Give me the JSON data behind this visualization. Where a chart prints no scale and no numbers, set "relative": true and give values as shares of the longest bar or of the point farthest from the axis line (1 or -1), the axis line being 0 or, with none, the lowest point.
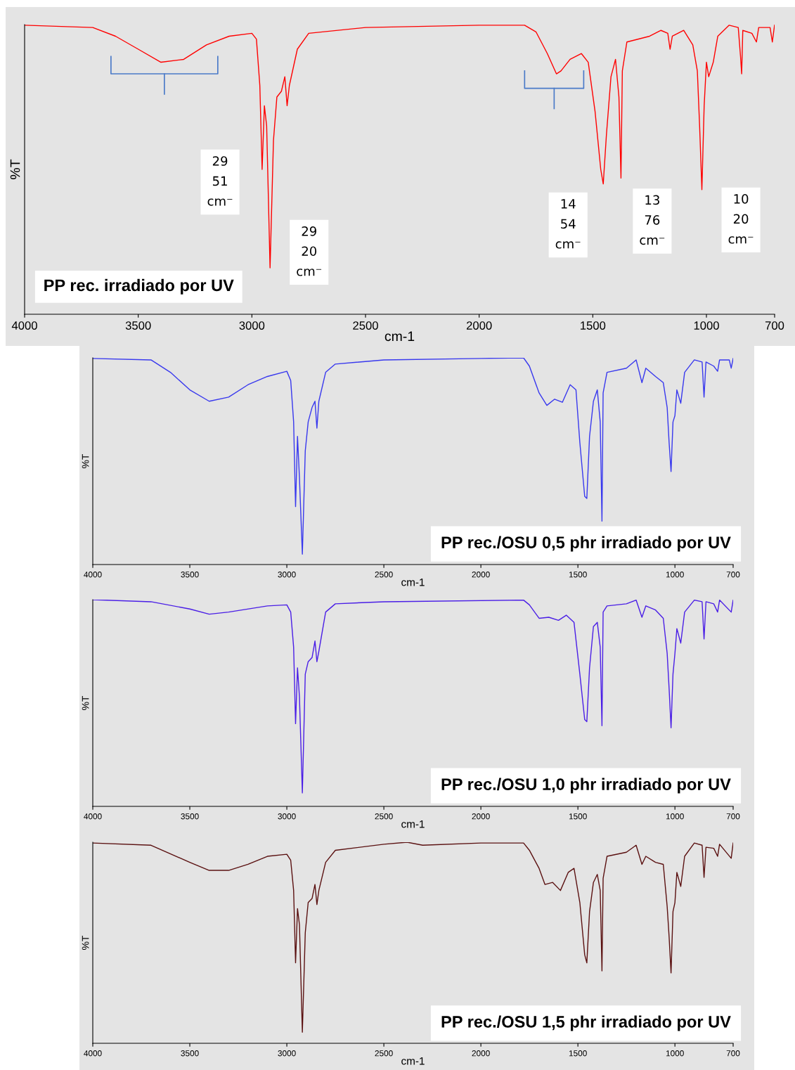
{
  "chart_data": [
    {
      "type": "line",
      "relative": true,
      "xlabel": "cm-1",
      "ylabel": "%T",
      "xlim": [
        4000,
        700
      ],
      "xticks": [
        4000,
        3500,
        3000,
        2500,
        2000,
        1500,
        1000,
        700
      ],
      "color": "#ff0000",
      "x": [
        4000,
        3700,
        3600,
        3500,
        3400,
        3300,
        3200,
        3100,
        3000,
        2980,
        2965,
        2955,
        2945,
        2935,
        2920,
        2905,
        2890,
        2870,
        2855,
        2845,
        2835,
        2800,
        2750,
        2500,
        2000,
        1800,
        1750,
        1700,
        1660,
        1640,
        1600,
        1550,
        1520,
        1490,
        1465,
        1454,
        1440,
        1420,
        1400,
        1385,
        1376,
        1370,
        1350,
        1250,
        1200,
        1170,
        1160,
        1150,
        1100,
        1060,
        1040,
        1030,
        1020,
        1010,
        1000,
        990,
        970,
        950,
        900,
        860,
        850,
        845,
        840,
        800,
        780,
        770,
        720,
        710,
        700
      ],
      "values": [
        0.998,
        0.99,
        0.96,
        0.915,
        0.87,
        0.88,
        0.93,
        0.96,
        0.97,
        0.95,
        0.79,
        0.5,
        0.72,
        0.65,
        0.16,
        0.6,
        0.75,
        0.77,
        0.82,
        0.72,
        0.79,
        0.915,
        0.97,
        0.99,
        0.998,
        0.998,
        0.975,
        0.9,
        0.83,
        0.84,
        0.88,
        0.9,
        0.87,
        0.7,
        0.5,
        0.45,
        0.62,
        0.82,
        0.88,
        0.75,
        0.47,
        0.84,
        0.94,
        0.96,
        0.98,
        0.97,
        0.915,
        0.96,
        0.98,
        0.93,
        0.84,
        0.65,
        0.43,
        0.72,
        0.87,
        0.82,
        0.87,
        0.96,
        0.998,
        0.99,
        0.89,
        0.83,
        0.98,
        0.97,
        0.94,
        0.99,
        0.99,
        0.94,
        1.0
      ],
      "annotations": [
        {
          "text": "29\n51\ncm⁻",
          "x": 2951,
          "y": 0.5
        },
        {
          "text": "29\n20\ncm⁻",
          "x": 2920,
          "y": 0.16
        },
        {
          "text": "14\n54\ncm⁻",
          "x": 1454,
          "y": 0.45
        },
        {
          "text": "13\n76\ncm⁻",
          "x": 1376,
          "y": 0.47
        },
        {
          "text": "10\n20\ncm⁻",
          "x": 1020,
          "y": 0.43
        },
        "PP rec. irradiado por UV"
      ]
    },
    {
      "type": "line",
      "relative": true,
      "xlabel": "cm-1",
      "ylabel": "%T",
      "xlim": [
        4000,
        700
      ],
      "xticks": [
        4000,
        3500,
        3000,
        2500,
        2000,
        1500,
        1000,
        700
      ],
      "color": "#3838ee",
      "x": [
        4000,
        3700,
        3600,
        3500,
        3400,
        3300,
        3200,
        3100,
        3000,
        2980,
        2965,
        2955,
        2945,
        2935,
        2920,
        2905,
        2890,
        2870,
        2855,
        2845,
        2835,
        2800,
        2750,
        2500,
        2000,
        1780,
        1750,
        1700,
        1660,
        1620,
        1580,
        1540,
        1510,
        1490,
        1465,
        1454,
        1440,
        1420,
        1400,
        1385,
        1376,
        1370,
        1350,
        1250,
        1200,
        1170,
        1150,
        1100,
        1060,
        1040,
        1030,
        1020,
        1010,
        1000,
        990,
        970,
        950,
        900,
        860,
        850,
        840,
        800,
        780,
        770,
        720,
        710,
        700
      ],
      "values": [
        0.997,
        0.99,
        0.93,
        0.845,
        0.79,
        0.81,
        0.87,
        0.91,
        0.935,
        0.89,
        0.69,
        0.28,
        0.62,
        0.42,
        0.05,
        0.55,
        0.69,
        0.76,
        0.79,
        0.66,
        0.79,
        0.93,
        0.97,
        0.99,
        0.997,
        1.0,
        0.96,
        0.83,
        0.77,
        0.8,
        0.785,
        0.87,
        0.845,
        0.59,
        0.33,
        0.32,
        0.62,
        0.79,
        0.845,
        0.69,
        0.21,
        0.83,
        0.93,
        0.95,
        0.99,
        0.88,
        0.95,
        0.91,
        0.88,
        0.76,
        0.59,
        0.45,
        0.69,
        0.72,
        0.845,
        0.78,
        0.93,
        0.99,
        0.98,
        0.81,
        0.98,
        0.96,
        0.935,
        0.99,
        0.99,
        0.95,
        0.997
      ],
      "annotations": [
        "PP rec./OSU 0,5 phr irradiado por UV"
      ]
    },
    {
      "type": "line",
      "relative": true,
      "xlabel": "cm-1",
      "ylabel": "%T",
      "xlim": [
        4000,
        700
      ],
      "xticks": [
        4000,
        3500,
        3000,
        2500,
        2000,
        1500,
        1000,
        700
      ],
      "color": "#4a1ee6",
      "x": [
        4000,
        3700,
        3500,
        3400,
        3300,
        3100,
        3000,
        2980,
        2965,
        2955,
        2945,
        2935,
        2920,
        2905,
        2890,
        2870,
        2855,
        2845,
        2835,
        2800,
        2750,
        2500,
        1780,
        1750,
        1700,
        1650,
        1600,
        1560,
        1520,
        1490,
        1465,
        1454,
        1440,
        1420,
        1400,
        1385,
        1376,
        1370,
        1350,
        1250,
        1200,
        1170,
        1150,
        1100,
        1060,
        1040,
        1030,
        1020,
        1010,
        1000,
        990,
        970,
        950,
        900,
        860,
        850,
        840,
        800,
        780,
        770,
        710,
        700
      ],
      "values": [
        1.0,
        0.99,
        0.955,
        0.93,
        0.94,
        0.97,
        0.975,
        0.94,
        0.77,
        0.4,
        0.67,
        0.53,
        0.065,
        0.64,
        0.7,
        0.72,
        0.8,
        0.7,
        0.75,
        0.94,
        0.98,
        0.99,
        0.998,
        0.975,
        0.91,
        0.915,
        0.9,
        0.925,
        0.89,
        0.64,
        0.42,
        0.41,
        0.67,
        0.87,
        0.89,
        0.77,
        0.39,
        0.94,
        0.97,
        0.98,
        0.998,
        0.915,
        0.97,
        0.95,
        0.91,
        0.74,
        0.57,
        0.38,
        0.64,
        0.74,
        0.86,
        0.79,
        0.94,
        0.998,
        0.99,
        0.81,
        0.99,
        0.98,
        0.94,
        0.998,
        0.94,
        0.998
      ],
      "annotations": [
        "PP rec./OSU 1,0 phr irradiado por UV"
      ]
    },
    {
      "type": "line",
      "relative": true,
      "xlabel": "cm-1",
      "ylabel": "%T",
      "xlim": [
        4000,
        700
      ],
      "xticks": [
        4000,
        3500,
        3000,
        2500,
        2000,
        1500,
        1000,
        700
      ],
      "color": "#5a1010",
      "x": [
        4000,
        3700,
        3500,
        3400,
        3300,
        3200,
        3100,
        3000,
        2980,
        2965,
        2955,
        2945,
        2935,
        2920,
        2905,
        2890,
        2870,
        2855,
        2845,
        2835,
        2800,
        2750,
        2500,
        2380,
        2300,
        2000,
        1780,
        1750,
        1700,
        1670,
        1630,
        1590,
        1550,
        1520,
        1490,
        1465,
        1454,
        1440,
        1420,
        1400,
        1385,
        1376,
        1370,
        1350,
        1250,
        1200,
        1170,
        1150,
        1100,
        1060,
        1040,
        1030,
        1020,
        1010,
        1000,
        990,
        970,
        950,
        900,
        860,
        850,
        840,
        800,
        780,
        770,
        710,
        700
      ],
      "values": [
        0.996,
        0.985,
        0.9,
        0.86,
        0.86,
        0.89,
        0.93,
        0.94,
        0.91,
        0.76,
        0.4,
        0.67,
        0.59,
        0.055,
        0.55,
        0.7,
        0.72,
        0.79,
        0.69,
        0.76,
        0.9,
        0.96,
        0.99,
        1.0,
        0.985,
        0.996,
        0.996,
        0.96,
        0.87,
        0.79,
        0.8,
        0.76,
        0.85,
        0.87,
        0.7,
        0.44,
        0.4,
        0.655,
        0.8,
        0.84,
        0.76,
        0.36,
        0.82,
        0.93,
        0.95,
        0.985,
        0.89,
        0.93,
        0.9,
        0.89,
        0.68,
        0.53,
        0.35,
        0.655,
        0.7,
        0.85,
        0.78,
        0.93,
        0.996,
        0.985,
        0.825,
        0.975,
        0.97,
        0.93,
        0.99,
        0.92,
        0.996
      ],
      "annotations": [
        "PP rec./OSU 1,5 phr irradiado por UV"
      ]
    }
  ]
}
